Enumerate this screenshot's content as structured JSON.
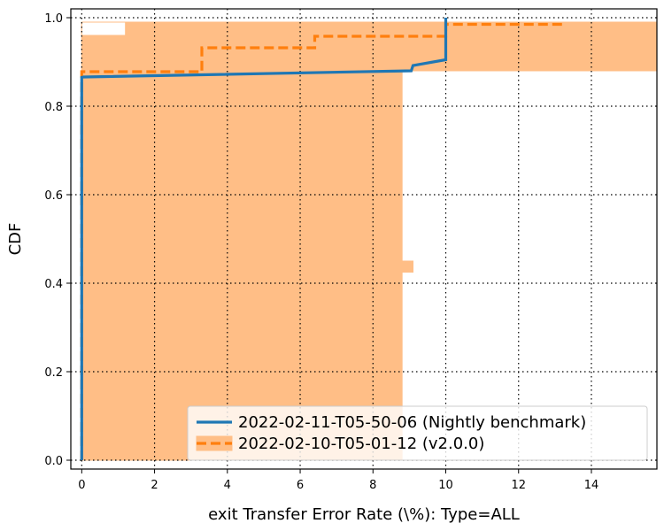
{
  "chart_data": {
    "type": "line",
    "xlabel": "exit Transfer Error Rate (\\%): Type=ALL",
    "ylabel": "CDF",
    "xlim": [
      -0.3,
      15.8
    ],
    "ylim": [
      -0.02,
      1.02
    ],
    "xticks": [
      0,
      2,
      4,
      6,
      8,
      10,
      12,
      14
    ],
    "yticks": [
      0.0,
      0.2,
      0.4,
      0.6,
      0.8,
      1.0
    ],
    "xtick_labels": [
      "0",
      "2",
      "4",
      "6",
      "8",
      "10",
      "12",
      "14"
    ],
    "ytick_labels": [
      "0.0",
      "0.2",
      "0.4",
      "0.6",
      "0.8",
      "1.0"
    ],
    "grid": true,
    "legend_position": "lower-right",
    "series": [
      {
        "name": "2022-02-11-T05-50-06 (Nightly benchmark)",
        "color": "#1f77b4",
        "style": "solid",
        "x": [
          0,
          0,
          0.05,
          9.05,
          9.1,
          10.0,
          10.0
        ],
        "y": [
          0.0,
          0.865,
          0.866,
          0.88,
          0.892,
          0.905,
          1.0
        ]
      },
      {
        "name": "2022-02-10-T05-01-12 (v2.0.0)",
        "color": "#ff7f0e",
        "style": "dashed",
        "x": [
          0,
          0,
          3.3,
          3.3,
          6.4,
          6.4,
          10.0,
          10.0,
          13.2
        ],
        "y": [
          0.0,
          0.878,
          0.878,
          0.932,
          0.932,
          0.958,
          0.958,
          0.985,
          0.985
        ],
        "band_color": "#ffbe86",
        "band": [
          {
            "x0": 0.0,
            "x1": 8.8,
            "y0": 0.0,
            "y1": 0.955
          },
          {
            "x0": 0.0,
            "x1": 15.8,
            "y0": 0.88,
            "y1": 0.99
          },
          {
            "x0": 8.8,
            "x1": 9.1,
            "y0": 0.425,
            "y1": 0.45
          }
        ],
        "band_gap": {
          "x0": 0.0,
          "x1": 1.2,
          "y0": 0.96,
          "y1": 0.99
        }
      }
    ]
  }
}
